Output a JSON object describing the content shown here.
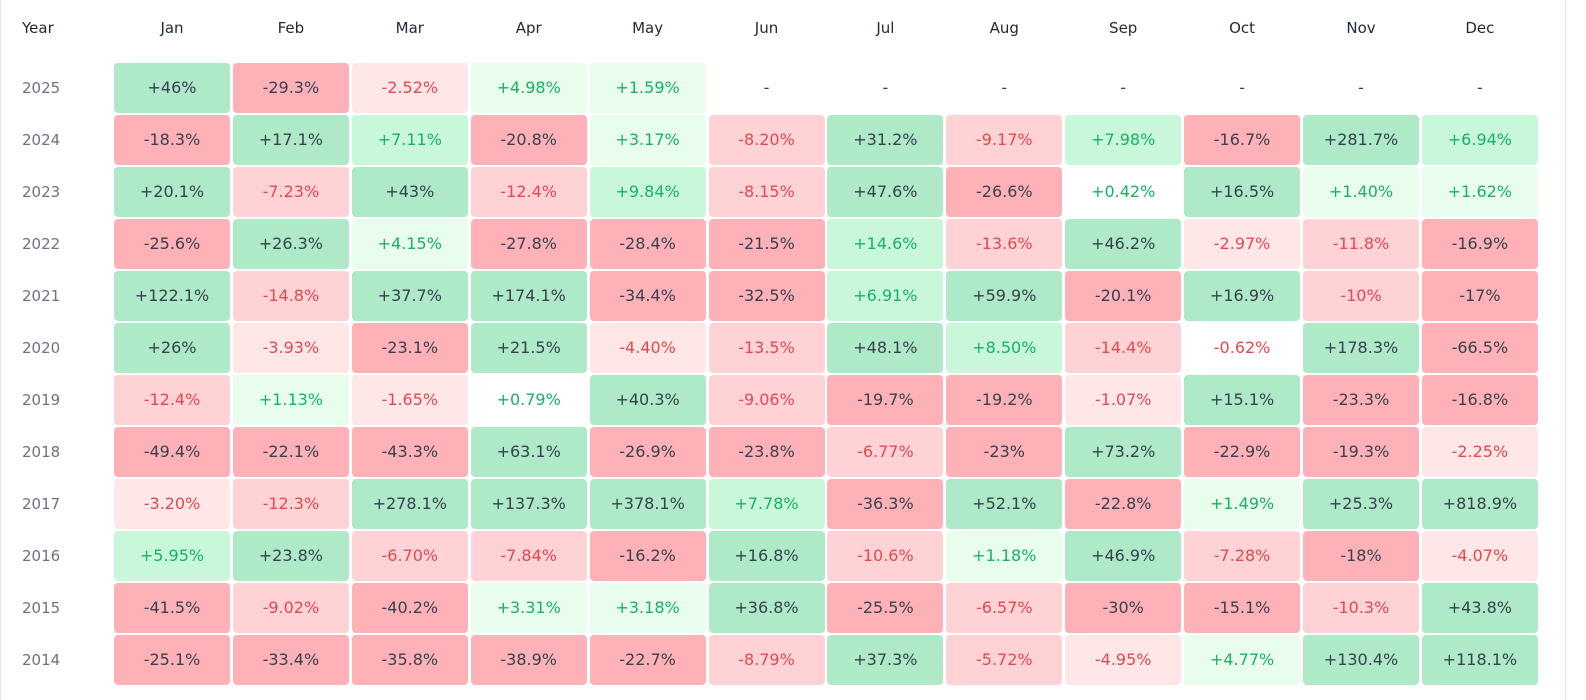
{
  "chart_data": {
    "type": "table",
    "year_header": "Year",
    "months": [
      "Jan",
      "Feb",
      "Mar",
      "Apr",
      "May",
      "Jun",
      "Jul",
      "Aug",
      "Sep",
      "Oct",
      "Nov",
      "Dec"
    ],
    "rows": [
      {
        "year": "2025",
        "values": [
          "+46%",
          "-29.3%",
          "-2.52%",
          "+4.98%",
          "+1.59%",
          "-",
          "-",
          "-",
          "-",
          "-",
          "-",
          "-"
        ]
      },
      {
        "year": "2024",
        "values": [
          "-18.3%",
          "+17.1%",
          "+7.11%",
          "-20.8%",
          "+3.17%",
          "-8.20%",
          "+31.2%",
          "-9.17%",
          "+7.98%",
          "-16.7%",
          "+281.7%",
          "+6.94%"
        ]
      },
      {
        "year": "2023",
        "values": [
          "+20.1%",
          "-7.23%",
          "+43%",
          "-12.4%",
          "+9.84%",
          "-8.15%",
          "+47.6%",
          "-26.6%",
          "+0.42%",
          "+16.5%",
          "+1.40%",
          "+1.62%"
        ]
      },
      {
        "year": "2022",
        "values": [
          "-25.6%",
          "+26.3%",
          "+4.15%",
          "-27.8%",
          "-28.4%",
          "-21.5%",
          "+14.6%",
          "-13.6%",
          "+46.2%",
          "-2.97%",
          "-11.8%",
          "-16.9%"
        ]
      },
      {
        "year": "2021",
        "values": [
          "+122.1%",
          "-14.8%",
          "+37.7%",
          "+174.1%",
          "-34.4%",
          "-32.5%",
          "+6.91%",
          "+59.9%",
          "-20.1%",
          "+16.9%",
          "-10%",
          "-17%"
        ]
      },
      {
        "year": "2020",
        "values": [
          "+26%",
          "-3.93%",
          "-23.1%",
          "+21.5%",
          "-4.40%",
          "-13.5%",
          "+48.1%",
          "+8.50%",
          "-14.4%",
          "-0.62%",
          "+178.3%",
          "-66.5%"
        ]
      },
      {
        "year": "2019",
        "values": [
          "-12.4%",
          "+1.13%",
          "-1.65%",
          "+0.79%",
          "+40.3%",
          "-9.06%",
          "-19.7%",
          "-19.2%",
          "-1.07%",
          "+15.1%",
          "-23.3%",
          "-16.8%"
        ]
      },
      {
        "year": "2018",
        "values": [
          "-49.4%",
          "-22.1%",
          "-43.3%",
          "+63.1%",
          "-26.9%",
          "-23.8%",
          "-6.77%",
          "-23%",
          "+73.2%",
          "-22.9%",
          "-19.3%",
          "-2.25%"
        ]
      },
      {
        "year": "2017",
        "values": [
          "-3.20%",
          "-12.3%",
          "+278.1%",
          "+137.3%",
          "+378.1%",
          "+7.78%",
          "-36.3%",
          "+52.1%",
          "-22.8%",
          "+1.49%",
          "+25.3%",
          "+818.9%"
        ]
      },
      {
        "year": "2016",
        "values": [
          "+5.95%",
          "+23.8%",
          "-6.70%",
          "-7.84%",
          "-16.2%",
          "+16.8%",
          "-10.6%",
          "+1.18%",
          "+46.9%",
          "-7.28%",
          "-18%",
          "-4.07%"
        ]
      },
      {
        "year": "2015",
        "values": [
          "-41.5%",
          "-9.02%",
          "-40.2%",
          "+3.31%",
          "+3.18%",
          "+36.8%",
          "-25.5%",
          "-6.57%",
          "-30%",
          "-15.1%",
          "-10.3%",
          "+43.8%"
        ]
      },
      {
        "year": "2014",
        "values": [
          "-25.1%",
          "-33.4%",
          "-35.8%",
          "-38.9%",
          "-22.7%",
          "-8.79%",
          "+37.3%",
          "-5.72%",
          "-4.95%",
          "+4.77%",
          "+130.4%",
          "+118.1%"
        ]
      }
    ],
    "colors": {
      "pos_strong_bg": "#aee9c8",
      "pos_mid_bg": "#c9f7da",
      "pos_light_bg": "#e9fded",
      "neg_strong_bg": "#feb2b7",
      "neg_mid_bg": "#ffd3d6",
      "neg_light_bg": "#ffe7e8",
      "strong_text": "#374151",
      "pos_text": "#16b364",
      "neg_text": "#e5484d",
      "dash_text": "#374151"
    }
  }
}
